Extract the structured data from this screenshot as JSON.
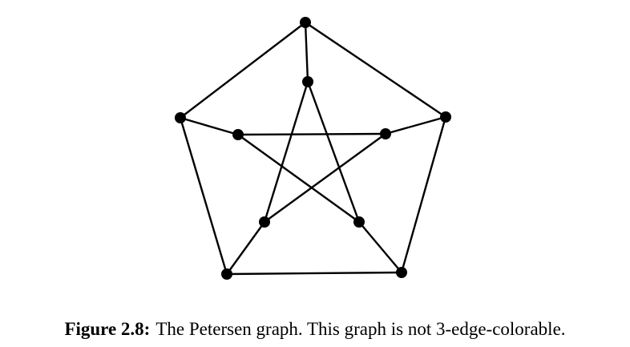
{
  "figure": {
    "caption_label": "Figure 2.8:",
    "caption_text": "The Petersen graph. This graph is not 3-edge-colorable."
  },
  "graph": {
    "vertices": [
      {
        "id": "o0",
        "ring": "outer"
      },
      {
        "id": "o1",
        "ring": "outer"
      },
      {
        "id": "o2",
        "ring": "outer"
      },
      {
        "id": "o3",
        "ring": "outer"
      },
      {
        "id": "o4",
        "ring": "outer"
      },
      {
        "id": "i0",
        "ring": "inner"
      },
      {
        "id": "i1",
        "ring": "inner"
      },
      {
        "id": "i2",
        "ring": "inner"
      },
      {
        "id": "i3",
        "ring": "inner"
      },
      {
        "id": "i4",
        "ring": "inner"
      }
    ],
    "edges": [
      [
        "o0",
        "o1"
      ],
      [
        "o1",
        "o2"
      ],
      [
        "o2",
        "o3"
      ],
      [
        "o3",
        "o4"
      ],
      [
        "o4",
        "o0"
      ],
      [
        "o0",
        "i0"
      ],
      [
        "o1",
        "i1"
      ],
      [
        "o2",
        "i2"
      ],
      [
        "o3",
        "i3"
      ],
      [
        "o4",
        "i4"
      ],
      [
        "i0",
        "i2"
      ],
      [
        "i2",
        "i4"
      ],
      [
        "i4",
        "i1"
      ],
      [
        "i1",
        "i3"
      ],
      [
        "i3",
        "i0"
      ]
    ],
    "stroke_color": "#000000",
    "vertex_color": "#000000"
  }
}
